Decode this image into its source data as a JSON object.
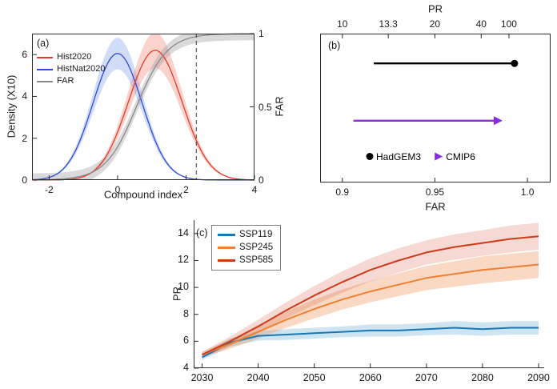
{
  "figure": {
    "bg": "#ffffff",
    "text_color": "#1a1a1a"
  },
  "chart_data": [
    {
      "panel": "a",
      "type": "line",
      "panel_label": "(a)",
      "xlabel": "Compound index",
      "ylabel_left": "Density (X10)",
      "ylabel_right": "FAR",
      "xlim": [
        -2.5,
        4
      ],
      "xticks": [
        -2,
        0,
        2,
        4
      ],
      "ylim_left": [
        0,
        7
      ],
      "yticks_left": [
        0,
        2,
        4,
        6
      ],
      "ylim_right": [
        0,
        1
      ],
      "yticks_right": [
        0,
        0.5,
        1
      ],
      "yticks_right_labels": [
        "0",
        "0.5",
        "1"
      ],
      "threshold_x": 2.3,
      "grid": false,
      "legend_position": "top-left",
      "legend": [
        {
          "label": "Hist2020",
          "color": "#e8392b"
        },
        {
          "label": "HistNat2020",
          "color": "#2f49d8"
        },
        {
          "label": "FAR",
          "color": "#8a8a8a"
        }
      ],
      "series": [
        {
          "name": "HistNat2020",
          "curve": "gaussian",
          "mean": 0.0,
          "sd": 0.72,
          "peak": 6.05,
          "band": 0.75,
          "axis": "left",
          "color": "#2f49d8",
          "band_color": "rgba(90,130,235,0.28)"
        },
        {
          "name": "Hist2020",
          "curve": "gaussian",
          "mean": 1.1,
          "sd": 0.78,
          "peak": 6.2,
          "band": 0.85,
          "axis": "left",
          "color": "#e8392b",
          "band_color": "rgba(240,110,85,0.30)"
        },
        {
          "name": "FAR",
          "curve": "logistic",
          "center": 0.55,
          "scale": 0.45,
          "band": 0.045,
          "axis": "right",
          "color": "#8a8a8a",
          "band_color": "rgba(150,150,150,0.35)"
        }
      ]
    },
    {
      "panel": "b",
      "type": "interval",
      "panel_label": "(b)",
      "top_axis": {
        "label": "PR",
        "tick_labels": [
          "10",
          "13.3",
          "20",
          "40",
          "100"
        ],
        "tick_values": [
          10,
          13.3,
          20,
          40,
          100
        ]
      },
      "bottom_axis": {
        "label": "FAR",
        "tick_labels": [
          "0.9",
          "0.95",
          "1.0"
        ],
        "tick_values": [
          0.9,
          0.95,
          1.0
        ]
      },
      "xlim": [
        0.888,
        1.0125
      ],
      "intervals": [
        {
          "name": "HadGEM3",
          "start": 0.917,
          "end": 0.993,
          "marker": "circle",
          "color": "#000000",
          "y_frac": 0.2
        },
        {
          "name": "CMIP6",
          "start": 0.906,
          "end": 0.9835,
          "marker": "arrow",
          "color": "#8a2be2",
          "y_frac": 0.585
        }
      ],
      "legend": [
        {
          "label": "HadGEM3",
          "marker": "circle",
          "color": "#000000"
        },
        {
          "label": "CMIP6",
          "marker": "arrow",
          "color": "#8a2be2"
        }
      ]
    },
    {
      "panel": "c",
      "type": "line",
      "panel_label": "(c)",
      "ylabel": "PR",
      "xlim": [
        2028.5,
        2091
      ],
      "xticks": [
        2030,
        2040,
        2050,
        2060,
        2070,
        2080,
        2090
      ],
      "ylim": [
        4,
        15
      ],
      "yticks": [
        4,
        6,
        8,
        10,
        12,
        14
      ],
      "x": [
        2030,
        2035,
        2040,
        2045,
        2050,
        2055,
        2060,
        2065,
        2070,
        2075,
        2080,
        2085,
        2090
      ],
      "series": [
        {
          "name": "SSP119",
          "color": "#1878b4",
          "band_color": "rgba(60,150,200,0.25)",
          "y": [
            4.8,
            5.9,
            6.4,
            6.5,
            6.6,
            6.7,
            6.8,
            6.8,
            6.9,
            7.0,
            6.9,
            7.0,
            7.0
          ],
          "band": [
            0.2,
            0.3,
            0.35,
            0.4,
            0.4,
            0.4,
            0.45,
            0.45,
            0.45,
            0.5,
            0.5,
            0.5,
            0.5
          ]
        },
        {
          "name": "SSP245",
          "color": "#ef8032",
          "band_color": "rgba(240,130,60,0.30)",
          "y": [
            5.0,
            5.8,
            6.7,
            7.6,
            8.4,
            9.1,
            9.7,
            10.2,
            10.7,
            11.0,
            11.3,
            11.5,
            11.7
          ],
          "band": [
            0.2,
            0.35,
            0.5,
            0.6,
            0.7,
            0.75,
            0.8,
            0.85,
            0.9,
            0.95,
            1.0,
            1.0,
            1.0
          ]
        },
        {
          "name": "SSP585",
          "color": "#cc3b1e",
          "band_color": "rgba(210,80,50,0.22)",
          "y": [
            5.0,
            6.0,
            7.1,
            8.3,
            9.4,
            10.4,
            11.3,
            12.0,
            12.6,
            13.0,
            13.3,
            13.6,
            13.8
          ],
          "band": [
            0.2,
            0.35,
            0.5,
            0.6,
            0.7,
            0.8,
            0.85,
            0.9,
            0.9,
            0.95,
            0.95,
            1.0,
            1.0
          ]
        }
      ],
      "legend": [
        {
          "label": "SSP119",
          "color": "#1878b4"
        },
        {
          "label": "SSP245",
          "color": "#ef8032"
        },
        {
          "label": "SSP585",
          "color": "#cc3b1e"
        }
      ]
    }
  ]
}
